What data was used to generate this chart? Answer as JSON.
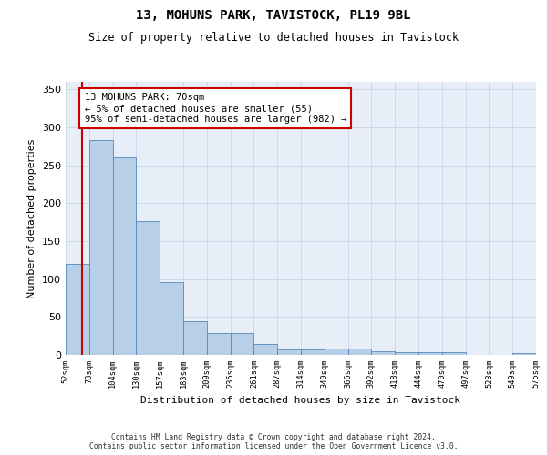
{
  "title": "13, MOHUNS PARK, TAVISTOCK, PL19 9BL",
  "subtitle": "Size of property relative to detached houses in Tavistock",
  "xlabel": "Distribution of detached houses by size in Tavistock",
  "ylabel": "Number of detached properties",
  "bar_values": [
    120,
    283,
    260,
    176,
    96,
    45,
    29,
    29,
    15,
    7,
    7,
    9,
    9,
    5,
    4,
    4,
    4,
    0,
    0,
    3
  ],
  "bar_labels": [
    "52sqm",
    "78sqm",
    "104sqm",
    "130sqm",
    "157sqm",
    "183sqm",
    "209sqm",
    "235sqm",
    "261sqm",
    "287sqm",
    "314sqm",
    "340sqm",
    "366sqm",
    "392sqm",
    "418sqm",
    "444sqm",
    "470sqm",
    "497sqm",
    "523sqm",
    "549sqm",
    "575sqm"
  ],
  "bar_color": "#b8cfe8",
  "bar_edge_color": "#5588bb",
  "highlight_color": "#cc0000",
  "annotation_text": "13 MOHUNS PARK: 70sqm\n← 5% of detached houses are smaller (55)\n95% of semi-detached houses are larger (982) →",
  "annotation_box_color": "#ffffff",
  "annotation_box_edge": "#cc0000",
  "ylim": [
    0,
    360
  ],
  "yticks": [
    0,
    50,
    100,
    150,
    200,
    250,
    300,
    350
  ],
  "bg_color": "#ffffff",
  "axes_bg_color": "#e8eef8",
  "grid_color": "#c8d4e8",
  "footer_text": "Contains HM Land Registry data © Crown copyright and database right 2024.\nContains public sector information licensed under the Open Government Licence v3.0."
}
